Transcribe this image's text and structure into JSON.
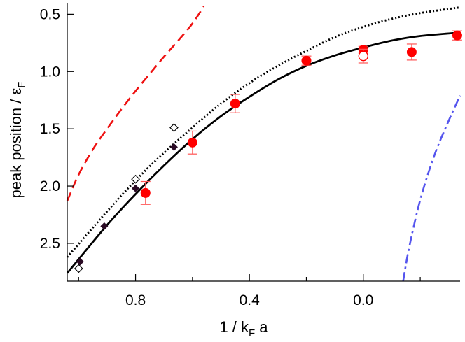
{
  "chart_data": {
    "type": "scatter",
    "title": "",
    "xlabel": {
      "main": "1 / k",
      "sub": "F",
      "tail": " a"
    },
    "ylabel": {
      "main": "peak position / ε",
      "sub": "F"
    },
    "x_reversed": true,
    "y_reversed": true,
    "xlim": [
      1.04,
      -0.34
    ],
    "ylim": [
      0.4,
      2.83
    ],
    "x_ticks": [
      0.8,
      0.4,
      0.0
    ],
    "x_tick_labels": [
      "0.8",
      "0.4",
      "0.0"
    ],
    "x_minor_ticks": [
      1.0,
      0.6,
      0.2,
      -0.2
    ],
    "y_ticks": [
      0.5,
      1.0,
      1.5,
      2.0,
      2.5
    ],
    "y_tick_labels": [
      "0.5",
      "1.0",
      "1.5",
      "2.0",
      "2.5"
    ],
    "grid": false,
    "legend": "none",
    "colors": {
      "measured": "#ff0000",
      "measured_errorbar": "#ff5555",
      "diamond_filled": "#2a0a24",
      "diamond_open": "#000000",
      "solid_curve": "#000000",
      "dotted_curve": "#000000",
      "red_dashed_curve": "#ee1111",
      "blue_dashdot_curve": "#5555ee"
    },
    "series": [
      {
        "name": "measured",
        "kind": "filled-circle-with-error",
        "x": [
          0.765,
          0.6,
          0.45,
          0.2,
          0.0,
          -0.17,
          -0.33
        ],
        "y": [
          2.06,
          1.62,
          1.28,
          0.905,
          0.81,
          0.83,
          0.685
        ],
        "err": [
          0.1,
          0.1,
          0.08,
          0.04,
          0.03,
          0.07,
          0.04
        ]
      },
      {
        "name": "measured-open",
        "kind": "open-circle-with-error",
        "x": [
          0.0
        ],
        "y": [
          0.865
        ],
        "err": [
          0.06
        ]
      },
      {
        "name": "theory-filled-diamonds",
        "kind": "filled-diamond",
        "x": [
          0.995,
          0.91,
          0.8,
          0.665
        ],
        "y": [
          2.66,
          2.35,
          2.02,
          1.66
        ]
      },
      {
        "name": "theory-open-diamonds",
        "kind": "open-diamond",
        "x": [
          1.0,
          0.8,
          0.665
        ],
        "y": [
          2.72,
          1.94,
          1.49
        ]
      },
      {
        "name": "solid-curve",
        "kind": "line-solid",
        "x": [
          1.04,
          0.9,
          0.8,
          0.7,
          0.6,
          0.5,
          0.4,
          0.3,
          0.2,
          0.1,
          0.0,
          -0.1,
          -0.2,
          -0.34
        ],
        "y": [
          2.76,
          2.34,
          2.07,
          1.82,
          1.59,
          1.39,
          1.22,
          1.07,
          0.95,
          0.86,
          0.79,
          0.73,
          0.69,
          0.66
        ]
      },
      {
        "name": "dotted-curve",
        "kind": "line-dotted",
        "x": [
          1.04,
          0.9,
          0.8,
          0.7,
          0.6,
          0.5,
          0.4,
          0.3,
          0.2,
          0.1,
          0.0,
          -0.1,
          -0.2,
          -0.34
        ],
        "y": [
          2.62,
          2.22,
          1.95,
          1.71,
          1.49,
          1.28,
          1.1,
          0.95,
          0.82,
          0.7,
          0.61,
          0.54,
          0.49,
          0.44
        ]
      },
      {
        "name": "red-dashed-curve",
        "kind": "line-dashed",
        "x": [
          1.04,
          1.0,
          0.95,
          0.9,
          0.85,
          0.8,
          0.75,
          0.7,
          0.65,
          0.6,
          0.56
        ],
        "y": [
          2.13,
          1.9,
          1.68,
          1.5,
          1.33,
          1.17,
          1.02,
          0.87,
          0.73,
          0.58,
          0.43
        ]
      },
      {
        "name": "blue-dashdot-curve",
        "kind": "line-dashdot",
        "x": [
          -0.14,
          -0.16,
          -0.2,
          -0.25,
          -0.3,
          -0.34
        ],
        "y": [
          2.83,
          2.55,
          2.12,
          1.73,
          1.43,
          1.21
        ]
      }
    ]
  }
}
